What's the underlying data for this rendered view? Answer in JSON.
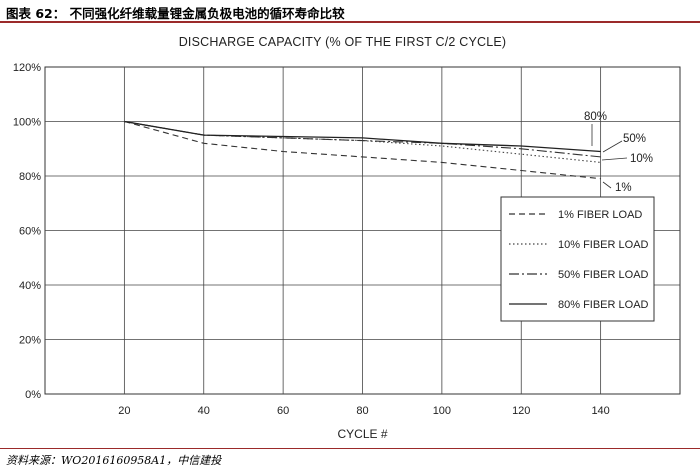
{
  "header": {
    "title": "图表 62：  不同强化纤维载量锂金属负极电池的循环寿命比较"
  },
  "footer": {
    "source": "资料来源：WO2016160958A1，中信建投"
  },
  "chart_data": {
    "type": "line",
    "title": "DISCHARGE CAPACITY (% OF THE FIRST C/2 CYCLE)",
    "xlabel": "CYCLE #",
    "ylabel": "",
    "xlim": [
      0,
      160
    ],
    "ylim": [
      0,
      120
    ],
    "xticks": [
      20,
      40,
      60,
      80,
      100,
      120,
      140
    ],
    "yticks": [
      0,
      20,
      40,
      60,
      80,
      100,
      120
    ],
    "ytick_labels": [
      "0%",
      "20%",
      "40%",
      "60%",
      "80%",
      "100%",
      "120%"
    ],
    "grid": true,
    "legend_position": "right",
    "series": [
      {
        "name": "1% FIBER LOAD",
        "end_label": "1%",
        "color": "#333333",
        "dash": "6,4",
        "x": [
          20,
          40,
          60,
          80,
          100,
          120,
          140
        ],
        "y": [
          100,
          92,
          89,
          87,
          85,
          82,
          79
        ]
      },
      {
        "name": "10% FIBER LOAD",
        "end_label": "10%",
        "color": "#444444",
        "dash": "1.5,2.5",
        "x": [
          20,
          40,
          60,
          80,
          100,
          120,
          140
        ],
        "y": [
          100,
          95,
          94,
          93,
          91,
          88,
          85
        ]
      },
      {
        "name": "50% FIBER LOAD",
        "end_label": "50%",
        "color": "#333333",
        "dash": "10,3,2,3",
        "x": [
          20,
          40,
          60,
          80,
          100,
          120,
          140
        ],
        "y": [
          100,
          95,
          94,
          93,
          92,
          90,
          87
        ]
      },
      {
        "name": "80% FIBER LOAD",
        "end_label": "80%",
        "color": "#222222",
        "dash": "",
        "x": [
          20,
          40,
          60,
          80,
          100,
          120,
          140
        ],
        "y": [
          100,
          95,
          94.5,
          94,
          92,
          91,
          89
        ]
      }
    ]
  }
}
